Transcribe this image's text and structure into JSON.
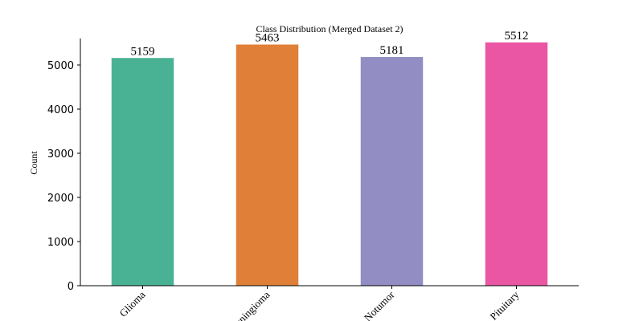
{
  "chart_data": {
    "type": "bar",
    "title": "Class Distribution (Merged Dataset 2)",
    "ylabel": "Count",
    "categories": [
      "Glioma",
      "Meningioma",
      "Notumor",
      "Pituitary"
    ],
    "values": [
      5159,
      5463,
      5181,
      5512
    ],
    "colors": [
      "#4ab294",
      "#e07f38",
      "#928dc2",
      "#ea56a4"
    ],
    "ylim": [
      0,
      5600
    ],
    "yticks": [
      0,
      1000,
      2000,
      3000,
      4000,
      5000
    ]
  }
}
